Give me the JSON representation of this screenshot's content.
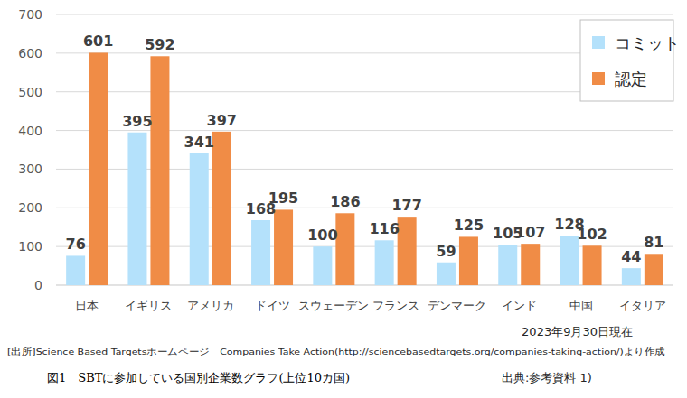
{
  "chart_data": {
    "type": "bar",
    "title": "図1　SBTに参加している国別企業数グラフ(上位10カ国)",
    "categories": [
      "日本",
      "イギリス",
      "アメリカ",
      "ドイツ",
      "スウェーデン",
      "フランス",
      "デンマーク",
      "インド",
      "中国",
      "イタリア"
    ],
    "series": [
      {
        "name": "コミット",
        "color": "#b4e1fb",
        "values": [
          76,
          395,
          341,
          168,
          100,
          116,
          59,
          105,
          128,
          44
        ]
      },
      {
        "name": "認定",
        "color": "#f08c46",
        "values": [
          601,
          592,
          397,
          195,
          186,
          177,
          125,
          107,
          102,
          81
        ]
      }
    ],
    "ylim": [
      0,
      700
    ],
    "yticks": [
      0,
      100,
      200,
      300,
      400,
      500,
      600,
      700
    ],
    "grid": true,
    "legend": "top-right",
    "data_labels": true,
    "annotations": [
      "2023年9月30日現在",
      "[出所]Science Based Targetsホームページ　Companies Take Action(http://sciencebasedtargets.org/companies-taking-action/)より作成",
      "出典:参考資料 1)"
    ]
  }
}
